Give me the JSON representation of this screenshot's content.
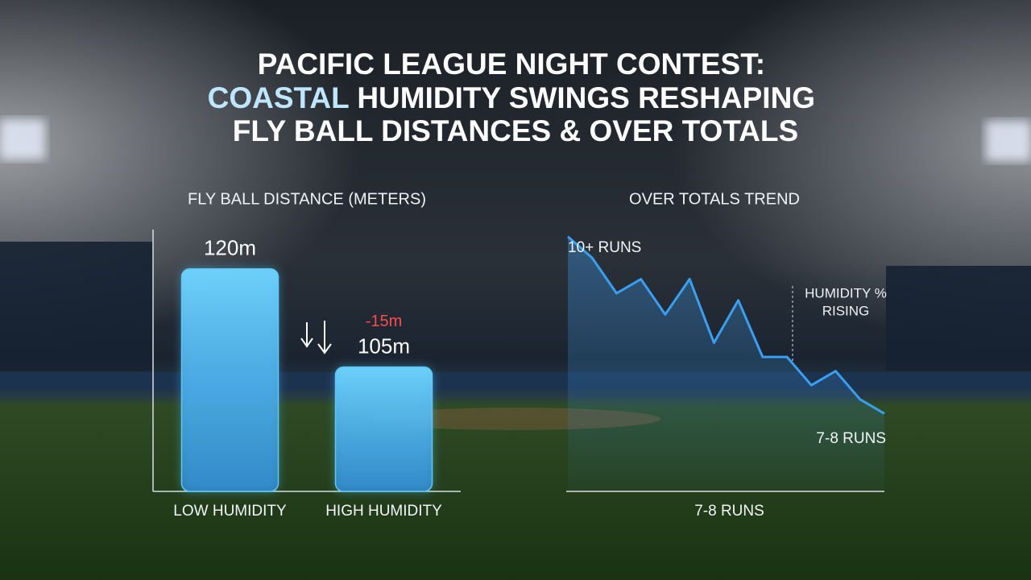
{
  "title": [
    "PACIFIC LEAGUE NIGHT CONTEST:",
    "COASTAL",
    "HUMIDITY SWINGS RESHAPING",
    "FLY BALL DISTANCES & OVER TOTALS"
  ],
  "chart_data": [
    {
      "type": "bar",
      "title": "FLY BALL DISTANCE (METERS)",
      "categories": [
        "LOW HUMIDITY",
        "HIGH HUMIDITY"
      ],
      "values": [
        120,
        105
      ],
      "value_labels": [
        "120m",
        "105m"
      ],
      "annotation": "-15m",
      "color": "#5ac8fa",
      "ylim": [
        86,
        126
      ]
    },
    {
      "type": "line",
      "title": "OVER TOTALS TREND",
      "start_label": "10+ RUNS",
      "end_label": "7-8 RUNS",
      "xlabel": "7-8 RUNS",
      "annotation": [
        "HUMIDITY %",
        "RISING"
      ],
      "values": [
        10.0,
        9.7,
        9.2,
        9.4,
        8.9,
        9.4,
        8.5,
        9.1,
        8.3,
        8.3,
        7.9,
        8.1,
        7.7,
        7.5
      ],
      "color": "#3a9ff0",
      "ylim": [
        6.4,
        10.1
      ]
    }
  ]
}
